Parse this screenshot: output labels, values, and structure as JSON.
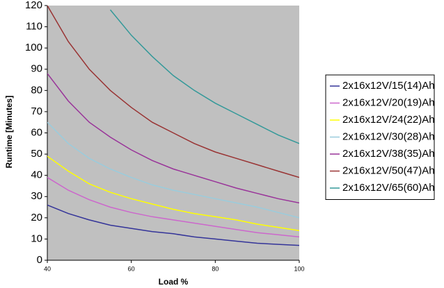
{
  "chart_data": {
    "type": "line",
    "x_label": "Load %",
    "y_label": "Runtime [Minutes]",
    "x": [
      40,
      45,
      50,
      55,
      60,
      65,
      70,
      75,
      80,
      85,
      90,
      95,
      100
    ],
    "series": [
      {
        "name": "2x16x12V/15(14)Ah",
        "color": "#333399",
        "values": [
          26,
          22,
          19,
          16.5,
          15,
          13.5,
          12.5,
          11,
          10,
          9,
          8,
          7.5,
          7
        ]
      },
      {
        "name": "2x16x12V/20(19)Ah",
        "color": "#cc66cc",
        "values": [
          39,
          33,
          28.5,
          25,
          22.5,
          20.5,
          19,
          17.5,
          16,
          14.5,
          13,
          12,
          11
        ]
      },
      {
        "name": "2x16x12V/24(22)Ah",
        "color": "#ffff00",
        "values": [
          49,
          42,
          36,
          32,
          29,
          26.5,
          24,
          22,
          20.5,
          19,
          17,
          15.5,
          14
        ]
      },
      {
        "name": "2x16x12V/30(28)Ah",
        "color": "#99ccdd",
        "values": [
          65,
          55,
          48,
          43,
          39,
          35.5,
          33,
          31,
          29,
          27,
          25,
          22.5,
          20
        ]
      },
      {
        "name": "2x16x12V/38(35)Ah",
        "color": "#993399",
        "values": [
          88,
          75,
          65,
          58,
          52,
          47,
          43,
          40,
          37,
          34,
          31.5,
          29,
          27
        ]
      },
      {
        "name": "2x16x12V/50(47)Ah",
        "color": "#993333",
        "values": [
          120,
          103,
          90,
          80,
          72,
          65,
          60,
          55,
          51,
          48,
          45,
          42,
          39
        ]
      },
      {
        "name": "2x16x12V/65(60)Ah",
        "color": "#339999",
        "values": [
          null,
          null,
          null,
          118,
          106,
          96,
          87,
          80,
          74,
          69,
          64,
          59,
          55
        ]
      }
    ],
    "xlim": [
      40,
      100
    ],
    "xticks": [
      40,
      60,
      80,
      100
    ],
    "ylim": [
      0,
      120
    ],
    "yticks": [
      0,
      10,
      20,
      30,
      40,
      50,
      60,
      70,
      80,
      90,
      100,
      110,
      120
    ],
    "plot_background": "#c0c0c0",
    "legend": "right"
  }
}
